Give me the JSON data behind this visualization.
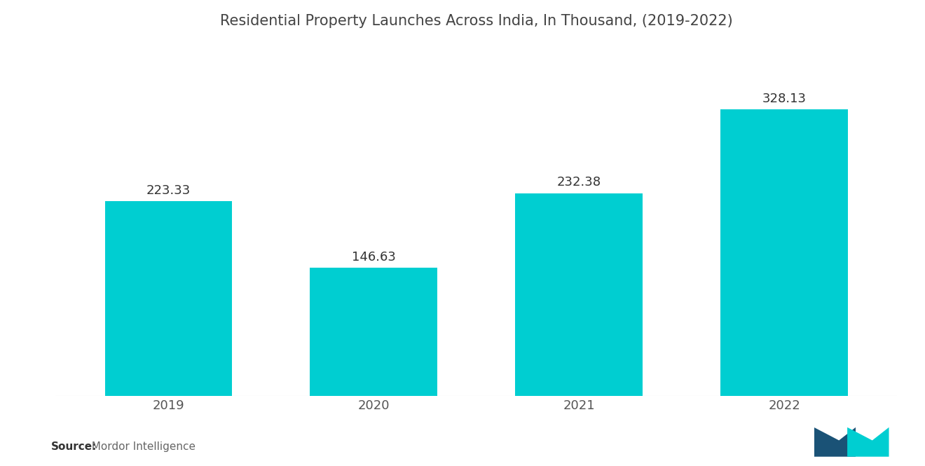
{
  "title": "Residential Property Launches Across India, In Thousand, (2019-2022)",
  "categories": [
    "2019",
    "2020",
    "2021",
    "2022"
  ],
  "values": [
    223.33,
    146.63,
    232.38,
    328.13
  ],
  "bar_color": "#00CED1",
  "background_color": "#ffffff",
  "title_fontsize": 15,
  "label_fontsize": 13,
  "tick_fontsize": 13,
  "source_bold": "Source:",
  "source_rest": "  Mordor Intelligence",
  "source_fontsize": 11,
  "ylim": [
    0,
    400
  ],
  "bar_width": 0.62,
  "label_color": "#333333",
  "tick_color": "#555555"
}
